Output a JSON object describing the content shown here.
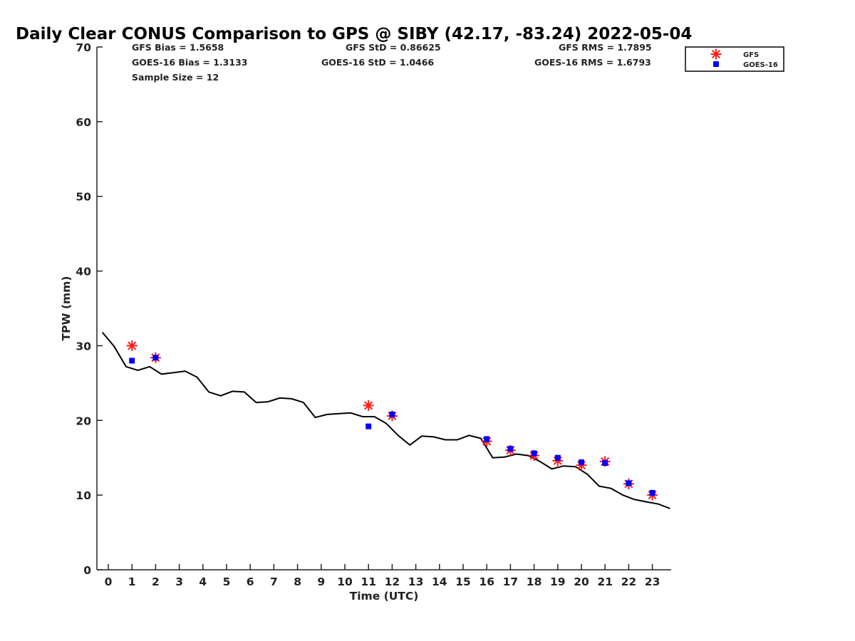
{
  "chart_data": {
    "type": "scatter",
    "title": "Daily Clear CONUS Comparison to GPS @ SIBY (42.17, -83.24) 2022-05-04",
    "xlabel": "Time (UTC)",
    "ylabel": "TPW (mm)",
    "xlim": [
      -0.5,
      23.75
    ],
    "ylim": [
      0,
      70
    ],
    "xticks": [
      "0",
      "1",
      "2",
      "3",
      "4",
      "5",
      "6",
      "7",
      "8",
      "9",
      "10",
      "11",
      "12",
      "13",
      "14",
      "15",
      "16",
      "17",
      "18",
      "19",
      "20",
      "21",
      "22",
      "23"
    ],
    "yticks": [
      "0",
      "10",
      "20",
      "30",
      "40",
      "50",
      "60",
      "70"
    ],
    "grid": false,
    "legend_position": "top-right",
    "stats": {
      "gfs_bias": "GFS Bias = 1.5658",
      "goes_bias": "GOES-16 Bias = 1.3133",
      "sample_size": "Sample Size = 12",
      "gfs_std": "GFS StD = 0.86625",
      "goes_std": "GOES-16 StD = 1.0466",
      "gfs_rms": "GFS RMS = 1.7895",
      "goes_rms": "GOES-16 RMS = 1.6793"
    },
    "legend": [
      "GFS",
      "GOES-16"
    ],
    "series": [
      {
        "kind": "line",
        "color": "#000000",
        "x": [
          -0.25,
          0.25,
          0.75,
          1.25,
          1.75,
          2.25,
          2.75,
          3.25,
          3.75,
          4.25,
          4.75,
          5.25,
          5.75,
          6.25,
          6.75,
          7.25,
          7.75,
          8.25,
          8.75,
          9.25,
          9.75,
          10.25,
          10.75,
          11.25,
          11.75,
          12.25,
          12.75,
          13.25,
          13.75,
          14.25,
          14.75,
          15.25,
          15.75,
          16.25,
          16.75,
          17.25,
          17.75,
          18.25,
          18.75,
          19.25,
          19.75,
          20.25,
          20.75,
          21.25,
          21.75,
          22.25,
          22.75,
          23.25,
          23.75
        ],
        "y": [
          31.8,
          29.9,
          27.2,
          26.7,
          27.2,
          26.2,
          26.4,
          26.6,
          25.8,
          23.8,
          23.3,
          23.9,
          23.8,
          22.4,
          22.5,
          23.0,
          22.9,
          22.4,
          20.4,
          20.8,
          20.9,
          21.0,
          20.5,
          20.5,
          19.6,
          18.0,
          16.7,
          17.9,
          17.8,
          17.4,
          17.4,
          18.0,
          17.6,
          15.0,
          15.1,
          15.5,
          15.3,
          14.5,
          13.5,
          13.9,
          13.8,
          12.8,
          11.2,
          10.9,
          10.0,
          9.4,
          9.1,
          8.8,
          8.2
        ]
      },
      {
        "name": "GFS",
        "kind": "scatter",
        "marker": "asterisk",
        "color": "#ff1a1a",
        "x": [
          1,
          2,
          11,
          12,
          16,
          17,
          18,
          19,
          20,
          21,
          22,
          23
        ],
        "y": [
          30.0,
          28.4,
          22.0,
          20.6,
          17.2,
          16.0,
          15.3,
          14.6,
          14.0,
          14.5,
          11.5,
          10.0
        ]
      },
      {
        "name": "GOES-16",
        "kind": "scatter",
        "marker": "square",
        "color": "#0000ff",
        "x": [
          1,
          2,
          11,
          12,
          16,
          17,
          18,
          19,
          20,
          21,
          22,
          23
        ],
        "y": [
          28.0,
          28.4,
          19.2,
          20.8,
          17.5,
          16.2,
          15.6,
          15.0,
          14.4,
          14.3,
          11.6,
          10.3
        ]
      }
    ]
  }
}
